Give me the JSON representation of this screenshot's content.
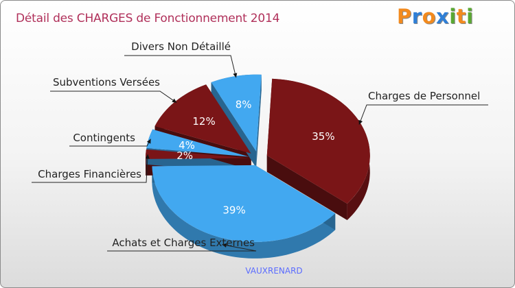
{
  "logo": {
    "letters": [
      "P",
      "r",
      "o",
      "x",
      "i",
      "t",
      "i"
    ],
    "colors": [
      "#f28a1e",
      "#2f7fd6",
      "#f28a1e",
      "#2f7fd6",
      "#5aa832",
      "#f28a1e",
      "#5aa832"
    ]
  },
  "colors": {
    "title": "#b0305a",
    "blue": "#42a8f0",
    "dark_red": "#7a1517",
    "city": "#5a6bff"
  },
  "chart_data": {
    "type": "pie",
    "title": "Détail des CHARGES de Fonctionnement 2014",
    "subtitle": "VAUXRENARD",
    "slices": [
      {
        "label": "Charges de Personnel",
        "pct_label": "35%",
        "value": 35,
        "color": "dark_red"
      },
      {
        "label": "Achats et Charges Externes",
        "pct_label": "39%",
        "value": 39,
        "color": "blue"
      },
      {
        "label": "Charges Financières",
        "pct_label": "2%",
        "value": 2,
        "color": "dark_red"
      },
      {
        "label": "Contingents",
        "pct_label": "4%",
        "value": 4,
        "color": "blue"
      },
      {
        "label": "Subventions Versées",
        "pct_label": "12%",
        "value": 12,
        "color": "dark_red"
      },
      {
        "label": "Divers Non Détaillé",
        "pct_label": "8%",
        "value": 8,
        "color": "blue"
      }
    ]
  }
}
